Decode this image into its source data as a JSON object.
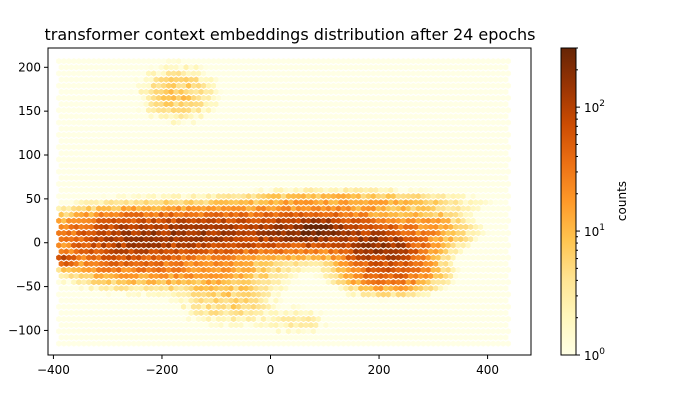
{
  "chart_data": {
    "type": "heatmap",
    "subtype": "hexbin",
    "title": "transformer context embeddings distribution after 24 epochs",
    "xlabel": "",
    "ylabel": "",
    "xlim": [
      -410,
      480
    ],
    "ylim": [
      -128,
      222
    ],
    "extent": {
      "x": [
        -390,
        440
      ],
      "y": [
        -115,
        210
      ]
    },
    "x_ticks": [
      -400,
      -200,
      0,
      200,
      400
    ],
    "x_tick_labels": [
      "−400",
      "−200",
      "0",
      "200",
      "400"
    ],
    "y_ticks": [
      -100,
      -50,
      0,
      50,
      100,
      150,
      200
    ],
    "y_tick_labels": [
      "−100",
      "−50",
      "0",
      "50",
      "100",
      "150",
      "200"
    ],
    "grid": false,
    "colormap": "YlOrBr",
    "colorbar": {
      "label": "counts",
      "scale": "log",
      "range": [
        1,
        300
      ],
      "ticks": [
        {
          "value": 1,
          "base": "10",
          "exp": "0"
        },
        {
          "value": 10,
          "base": "10",
          "exp": "1"
        },
        {
          "value": 100,
          "base": "10",
          "exp": "2"
        }
      ]
    },
    "clusters": [
      {
        "x": -170,
        "y": 10,
        "sx": 110,
        "sy": 14,
        "peak": 120
      },
      {
        "x": 60,
        "y": 12,
        "sx": 110,
        "sy": 12,
        "peak": 110
      },
      {
        "x": 85,
        "y": 15,
        "sx": 30,
        "sy": 8,
        "peak": 180
      },
      {
        "x": 200,
        "y": -5,
        "sx": 40,
        "sy": 10,
        "peak": 170
      },
      {
        "x": -270,
        "y": -5,
        "sx": 60,
        "sy": 18,
        "peak": 60
      },
      {
        "x": -380,
        "y": -20,
        "sx": 12,
        "sy": 4,
        "peak": 90
      },
      {
        "x": 220,
        "y": -32,
        "sx": 45,
        "sy": 12,
        "peak": 60
      },
      {
        "x": -150,
        "y": -30,
        "sx": 90,
        "sy": 12,
        "peak": 18
      },
      {
        "x": 120,
        "y": 45,
        "sx": 120,
        "sy": 8,
        "peak": 15
      },
      {
        "x": -80,
        "y": -62,
        "sx": 50,
        "sy": 18,
        "peak": 7
      },
      {
        "x": -170,
        "y": 170,
        "sx": 40,
        "sy": 18,
        "peak": 8
      },
      {
        "x": 50,
        "y": -90,
        "sx": 40,
        "sy": 10,
        "peak": 3
      },
      {
        "x": 300,
        "y": 15,
        "sx": 30,
        "sy": 15,
        "peak": 10
      }
    ]
  }
}
